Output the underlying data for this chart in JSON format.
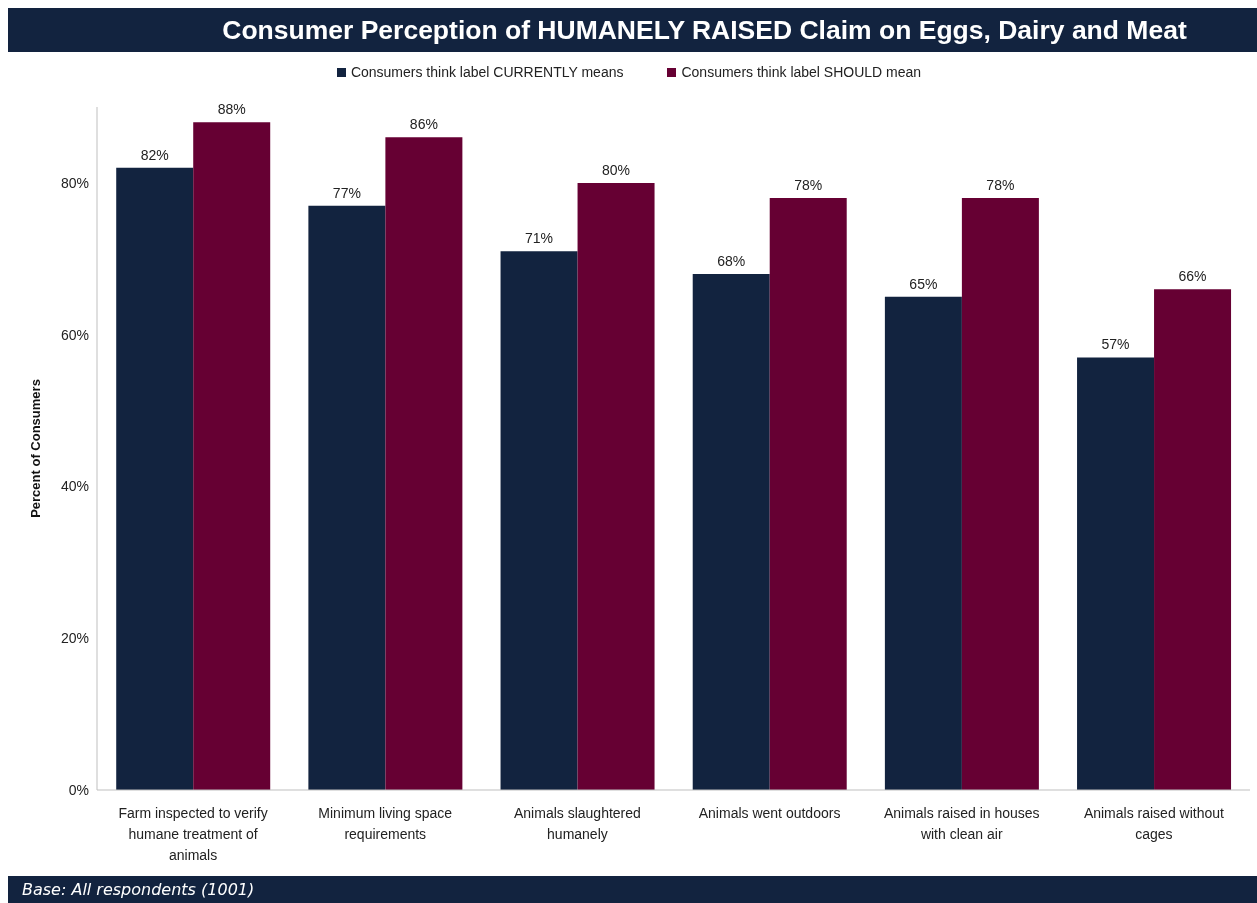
{
  "chart_data": {
    "type": "bar",
    "title": "Consumer Perception of HUMANELY RAISED Claim on Eggs, Dairy and Meat",
    "ylabel": "Percent of Consumers",
    "categories": [
      "Farm inspected to verify humane treatment of animals",
      "Minimum living space requirements",
      "Animals slaughtered humanely",
      "Animals went outdoors",
      "Animals raised in houses with clean air",
      "Animals raised without cages"
    ],
    "series": [
      {
        "name": "Consumers think label CURRENTLY means",
        "color": "#12233f",
        "values": [
          82,
          77,
          71,
          68,
          65,
          57
        ],
        "value_labels": [
          "82%",
          "77%",
          "71%",
          "68%",
          "65%",
          "57%"
        ]
      },
      {
        "name": "Consumers think label SHOULD mean",
        "color": "#660033",
        "values": [
          88,
          86,
          80,
          78,
          78,
          66
        ],
        "value_labels": [
          "88%",
          "86%",
          "80%",
          "78%",
          "78%",
          "66%"
        ]
      }
    ],
    "ylim": [
      0,
      90
    ],
    "yticks": [
      {
        "value": 0,
        "label": "0%"
      },
      {
        "value": 20,
        "label": "20%"
      },
      {
        "value": 40,
        "label": "40%"
      },
      {
        "value": 60,
        "label": "60%"
      },
      {
        "value": 80,
        "label": "80%"
      }
    ],
    "legend": "top",
    "annotations": [
      "Base: All respondents (1001)"
    ]
  }
}
